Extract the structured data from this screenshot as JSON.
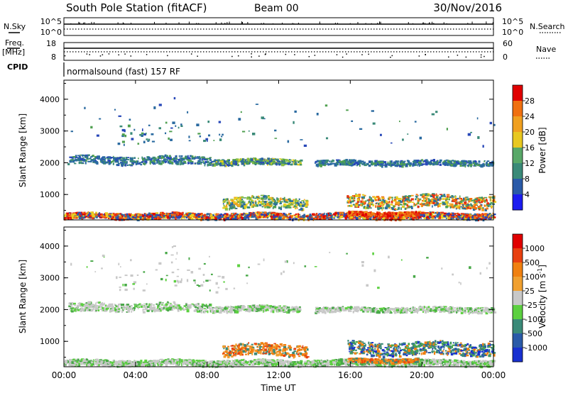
{
  "header": {
    "station": "South Pole Station (fitACF)",
    "beam": "Beam 00",
    "date": "30/Nov/2016"
  },
  "top_panels": {
    "nsky_label": "N.Sky",
    "nsearch_label": "N.Search",
    "nsky_ticks": [
      "10^5",
      "10^0"
    ],
    "nsearch_ticks": [
      "10^5",
      "10^0"
    ],
    "freq_label": "Freq.",
    "freq_unit": "[MHz]",
    "freq_ticks": [
      "18",
      "8"
    ],
    "nave_label": "Nave",
    "nave_ticks": [
      "60",
      "0"
    ],
    "cpid_label": "CPID",
    "cpid_text": "normalsound (fast) 157 RF"
  },
  "chart_data": [
    {
      "type": "heatmap",
      "name": "power",
      "ylabel": "Slant Range [km]",
      "yticks": [
        "4000",
        "3000",
        "2000",
        "1000"
      ],
      "ylim": [
        200,
        4600
      ],
      "xlim": [
        0,
        24
      ],
      "colorbar": {
        "label": "Power [dB]",
        "ticks": [
          "28",
          "24",
          "20",
          "16",
          "12",
          "8",
          "4"
        ],
        "range": [
          0,
          32
        ],
        "colors": [
          "#1c1cf0",
          "#2848b8",
          "#2a6aa0",
          "#3a8a78",
          "#50a050",
          "#8cc040",
          "#e8d020",
          "#f0a020",
          "#f07010",
          "#e83010",
          "#e00000"
        ]
      }
    },
    {
      "type": "heatmap",
      "name": "velocity",
      "ylabel": "Slant Range [km]",
      "yticks": [
        "4000",
        "3000",
        "2000",
        "1000"
      ],
      "ylim": [
        200,
        4600
      ],
      "xlim": [
        0,
        24
      ],
      "xticks": [
        "00:00",
        "04:00",
        "08:00",
        "12:00",
        "16:00",
        "20:00",
        "00:00"
      ],
      "xlabel": "Time UT",
      "colorbar": {
        "label": "Velocity [m s",
        "label_sup": "-1",
        "label_end": "]",
        "ticks": [
          "1000",
          "500",
          "100",
          "25",
          "-25",
          "-100",
          "-500",
          "-1000"
        ],
        "colors": [
          "#1830d0",
          "#2a5aa8",
          "#3a8a78",
          "#48a848",
          "#5cd040",
          "#c8c8c8",
          "#f0a030",
          "#f08010",
          "#e84010",
          "#e00000"
        ]
      }
    }
  ]
}
